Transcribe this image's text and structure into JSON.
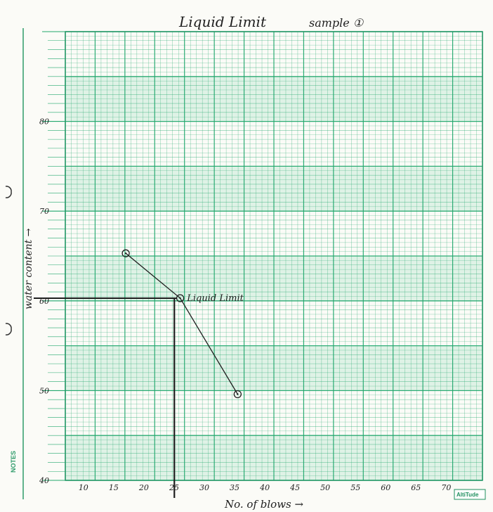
{
  "chart_data": {
    "type": "line",
    "title": "Liquid Limit",
    "subtitle": "sample ①",
    "xlabel": "No. of blows →",
    "ylabel": "water content →",
    "x_ticks": [
      "10",
      "15",
      "20",
      "25",
      "30",
      "35",
      "40",
      "45",
      "50",
      "55",
      "60",
      "65",
      "70"
    ],
    "y_ticks": [
      "40",
      "50",
      "60",
      "70",
      "80"
    ],
    "xlim": [
      7,
      76
    ],
    "ylim": [
      40,
      90
    ],
    "grid": true,
    "series": [
      {
        "x": [
          17,
          26,
          35.5
        ],
        "y": [
          65.3,
          60.3,
          49.6
        ]
      }
    ],
    "reference": {
      "x": 25.5,
      "y": 60.3,
      "label": "Liquid Limit"
    }
  },
  "paper": {
    "notes_label": "NOTES",
    "brand": "AltiTude",
    "grid_color": "#23a86e",
    "band_color": "#c9ebd8",
    "ink_color": "#1f1f1f"
  }
}
